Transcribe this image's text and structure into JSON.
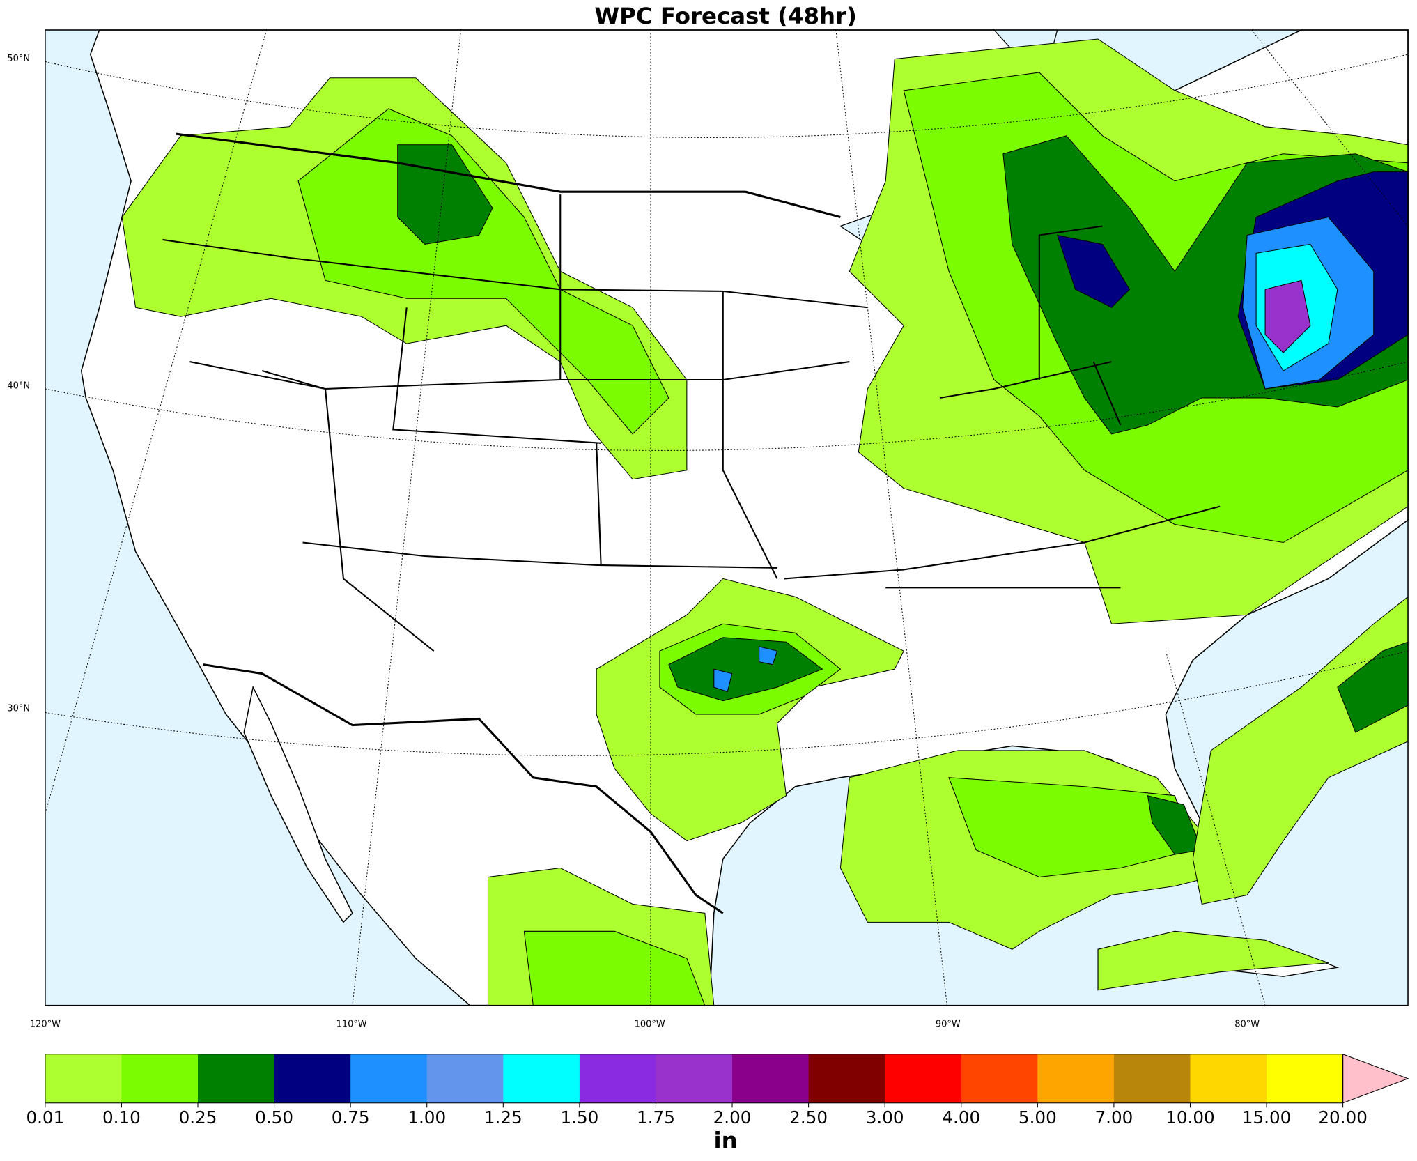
{
  "map": {
    "title": "WPC Forecast (48hr)",
    "latitude_labels": [
      "50°N",
      "40°N",
      "30°N"
    ],
    "longitude_labels": [
      "120°W",
      "110°W",
      "100°W",
      "90°W",
      "80°W"
    ],
    "colorbar": {
      "ticks": [
        {
          "value": 0.01,
          "label": "0.01"
        },
        {
          "value": 0.1,
          "label": "0.10"
        },
        {
          "value": 0.25,
          "label": "0.25"
        },
        {
          "value": 0.5,
          "label": "0.50"
        },
        {
          "value": 0.75,
          "label": "0.75"
        },
        {
          "value": 1,
          "label": "1.00"
        },
        {
          "value": 1.25,
          "label": "1.25"
        },
        {
          "value": 1.5,
          "label": "1.50"
        },
        {
          "value": 1.75,
          "label": "1.75"
        },
        {
          "value": 2,
          "label": "2.00"
        },
        {
          "value": 2.5,
          "label": "2.50"
        },
        {
          "value": 3,
          "label": "3.00"
        },
        {
          "value": 4,
          "label": "4.00"
        },
        {
          "value": 5,
          "label": "5.00"
        },
        {
          "value": 7,
          "label": "7.00"
        },
        {
          "value": 10,
          "label": "10.00"
        },
        {
          "value": 15,
          "label": "15.00"
        },
        {
          "value": 20,
          "label": "20.00"
        }
      ],
      "colors": [
        "#adff2f",
        "#7cfc00",
        "#008000",
        "#000080",
        "#1e90ff",
        "#6495ed",
        "#00ffff",
        "#8a2be2",
        "#9932cc",
        "#8b008b",
        "#800000",
        "#ff0000",
        "#ff4500",
        "#ffa500",
        "#b8860b",
        "#ffd700",
        "#ffff00"
      ],
      "extend_color": "#ffc0cb",
      "unit": "in"
    }
  }
}
